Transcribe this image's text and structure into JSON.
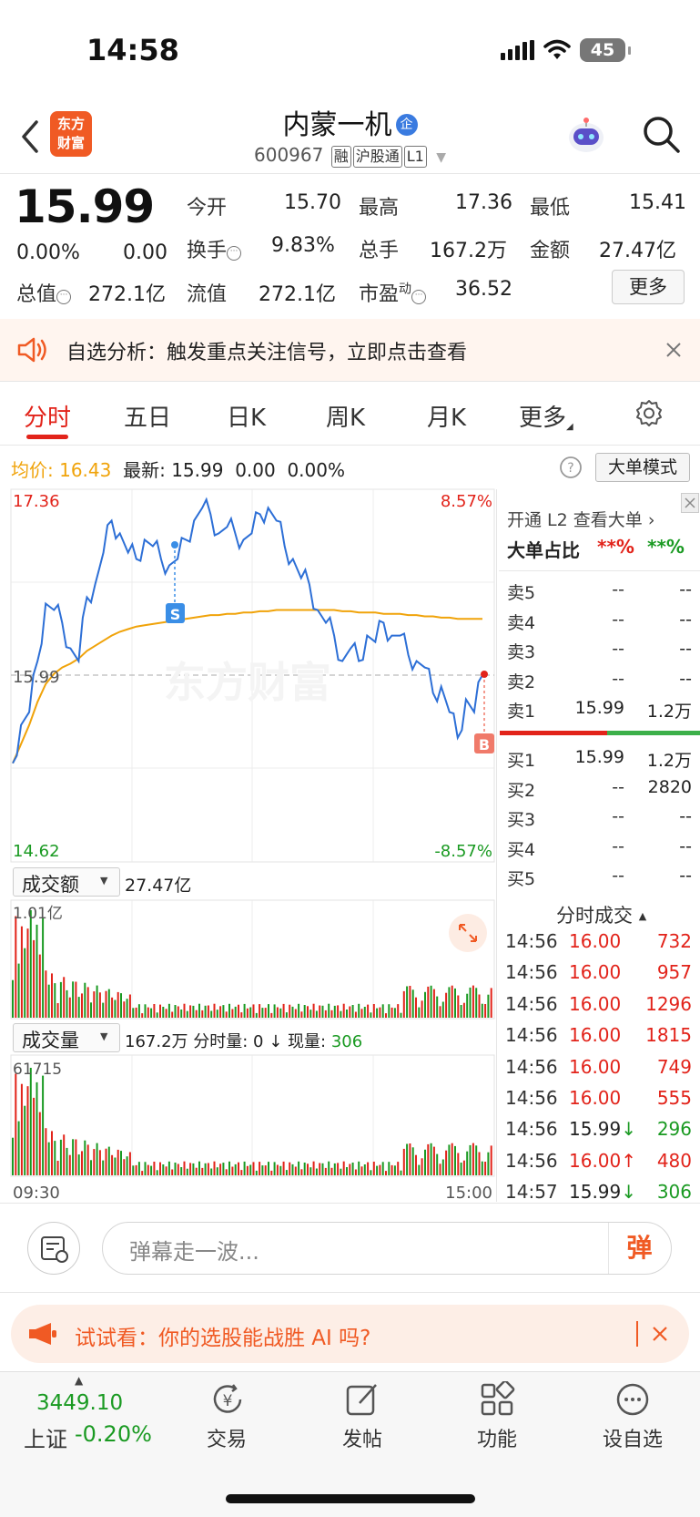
{
  "status_bar": {
    "time": "14:58",
    "battery": "45"
  },
  "header": {
    "logo_line1": "东方",
    "logo_line2": "财富",
    "name": "内蒙一机",
    "name_badge": "企",
    "code": "600967",
    "tag1": "融",
    "tag2": "沪股通",
    "tag3": "L1"
  },
  "quote": {
    "price": "15.99",
    "change_pct": "0.00%",
    "change": "0.00",
    "open_label": "今开",
    "open": "15.70",
    "high_label": "最高",
    "high": "17.36",
    "low_label": "最低",
    "low": "15.41",
    "turnover_label": "换手",
    "turnover": "9.83%",
    "volume_label": "总手",
    "volume": "167.2万",
    "amount_label": "金额",
    "amount": "27.47亿",
    "mcap_label": "总值",
    "mcap": "272.1亿",
    "float_label": "流值",
    "float_cap": "272.1亿",
    "pe_label": "市盈",
    "pe_sup": "动",
    "pe": "36.52",
    "more_button": "更多"
  },
  "notice": {
    "text": "自选分析：触发重点关注信号，立即点击查看"
  },
  "tabs": [
    {
      "label": "分时"
    },
    {
      "label": "五日"
    },
    {
      "label": "日K"
    },
    {
      "label": "周K"
    },
    {
      "label": "月K"
    },
    {
      "label": "更多"
    }
  ],
  "info_line": {
    "avg_label": "均价:",
    "avg": "16.43",
    "latest_label": "最新:",
    "latest": "15.99",
    "latest_chg": "0.00",
    "latest_pct": "0.00%",
    "bigorder_button": "大单模式"
  },
  "chart_data": {
    "type": "line",
    "price_axis": {
      "top_label": "17.36",
      "mid_label": "15.99",
      "bottom_label": "14.62",
      "top_pct": "8.57%",
      "bottom_pct": "-8.57%"
    },
    "ylim": [
      14.62,
      17.36
    ],
    "time_start": "09:30",
    "time_end": "15:00",
    "price_series": [
      15.3,
      15.6,
      15.7,
      16.1,
      16.55,
      16.5,
      16.4,
      16.2,
      16.1,
      16.6,
      16.7,
      16.95,
      17.2,
      17.1,
      16.95,
      16.9,
      17.05,
      17.0,
      16.9,
      16.85,
      16.9,
      17.05,
      17.2,
      17.3,
      17.25,
      17.1,
      17.15,
      17.1,
      17.05,
      17.1,
      17.25,
      17.3,
      17.2,
      17.0,
      16.9,
      16.75,
      16.7,
      16.5,
      16.4,
      16.3,
      16.1,
      16.2,
      16.1,
      16.3,
      16.25,
      16.4,
      16.3,
      16.3,
      16.15,
      16.1,
      16.05,
      15.85,
      15.9,
      15.7,
      15.5,
      15.8,
      15.7,
      15.99
    ],
    "avg_series": [
      15.3,
      15.45,
      15.6,
      15.78,
      15.92,
      16.0,
      16.05,
      16.08,
      16.12,
      16.18,
      16.22,
      16.26,
      16.3,
      16.33,
      16.35,
      16.37,
      16.38,
      16.39,
      16.4,
      16.41,
      16.42,
      16.43,
      16.44,
      16.45,
      16.46,
      16.46,
      16.47,
      16.47,
      16.48,
      16.48,
      16.49,
      16.49,
      16.5,
      16.5,
      16.5,
      16.5,
      16.5,
      16.5,
      16.5,
      16.5,
      16.49,
      16.49,
      16.48,
      16.48,
      16.48,
      16.47,
      16.47,
      16.47,
      16.46,
      16.46,
      16.45,
      16.45,
      16.44,
      16.44,
      16.43,
      16.43,
      16.43,
      16.43
    ],
    "marker_sell": "S",
    "marker_buy": "B",
    "amount_header": "成交额",
    "amount_total": "27.47亿",
    "amount_max": "1.01亿",
    "volume_header": "成交量",
    "volume_total": "167.2万",
    "volume_detail_label": "分时量: 0 ↓ 现量:",
    "volume_now": "306",
    "volume_max": "61715"
  },
  "l2": {
    "promo": "开通 L2 查看大单",
    "ratio_label": "大单占比",
    "ratio_red": "**%",
    "ratio_green": "**%"
  },
  "order_book": {
    "asks": [
      {
        "label": "卖5",
        "price": "--",
        "vol": "--"
      },
      {
        "label": "卖4",
        "price": "--",
        "vol": "--"
      },
      {
        "label": "卖3",
        "price": "--",
        "vol": "--"
      },
      {
        "label": "卖2",
        "price": "--",
        "vol": "--"
      },
      {
        "label": "卖1",
        "price": "15.99",
        "vol": "1.2万"
      }
    ],
    "bids": [
      {
        "label": "买1",
        "price": "15.99",
        "vol": "1.2万"
      },
      {
        "label": "买2",
        "price": "--",
        "vol": "2820"
      },
      {
        "label": "买3",
        "price": "--",
        "vol": "--"
      },
      {
        "label": "买4",
        "price": "--",
        "vol": "--"
      },
      {
        "label": "买5",
        "price": "--",
        "vol": "--"
      }
    ]
  },
  "ticks": {
    "header": "分时成交",
    "rows": [
      {
        "time": "14:56",
        "price": "16.00",
        "vol": "732"
      },
      {
        "time": "14:56",
        "price": "16.00",
        "vol": "957"
      },
      {
        "time": "14:56",
        "price": "16.00",
        "vol": "1296"
      },
      {
        "time": "14:56",
        "price": "16.00",
        "vol": "1815"
      },
      {
        "time": "14:56",
        "price": "16.00",
        "vol": "749"
      },
      {
        "time": "14:56",
        "price": "16.00",
        "vol": "555"
      },
      {
        "time": "14:56",
        "price": "15.99↓",
        "vol": "296"
      },
      {
        "time": "14:56",
        "price": "16.00↑",
        "vol": "480"
      },
      {
        "time": "14:57",
        "price": "15.99↓",
        "vol": "306"
      }
    ]
  },
  "danmu": {
    "placeholder": "弹幕走一波...",
    "button": "弹"
  },
  "promo": {
    "text": "试试看：你的选股能战胜 AI 吗?"
  },
  "bottom_nav": {
    "index_value": "3449.10",
    "index_name": "上证",
    "index_change": "-0.20%",
    "items": [
      {
        "label": "交易"
      },
      {
        "label": "发帖"
      },
      {
        "label": "功能"
      },
      {
        "label": "设自选"
      }
    ]
  },
  "colors": {
    "up": "#e2231a",
    "down": "#1a9a22",
    "avg_line": "#f0a30a",
    "price_line": "#2d6fd6",
    "brand": "#f05a24"
  }
}
